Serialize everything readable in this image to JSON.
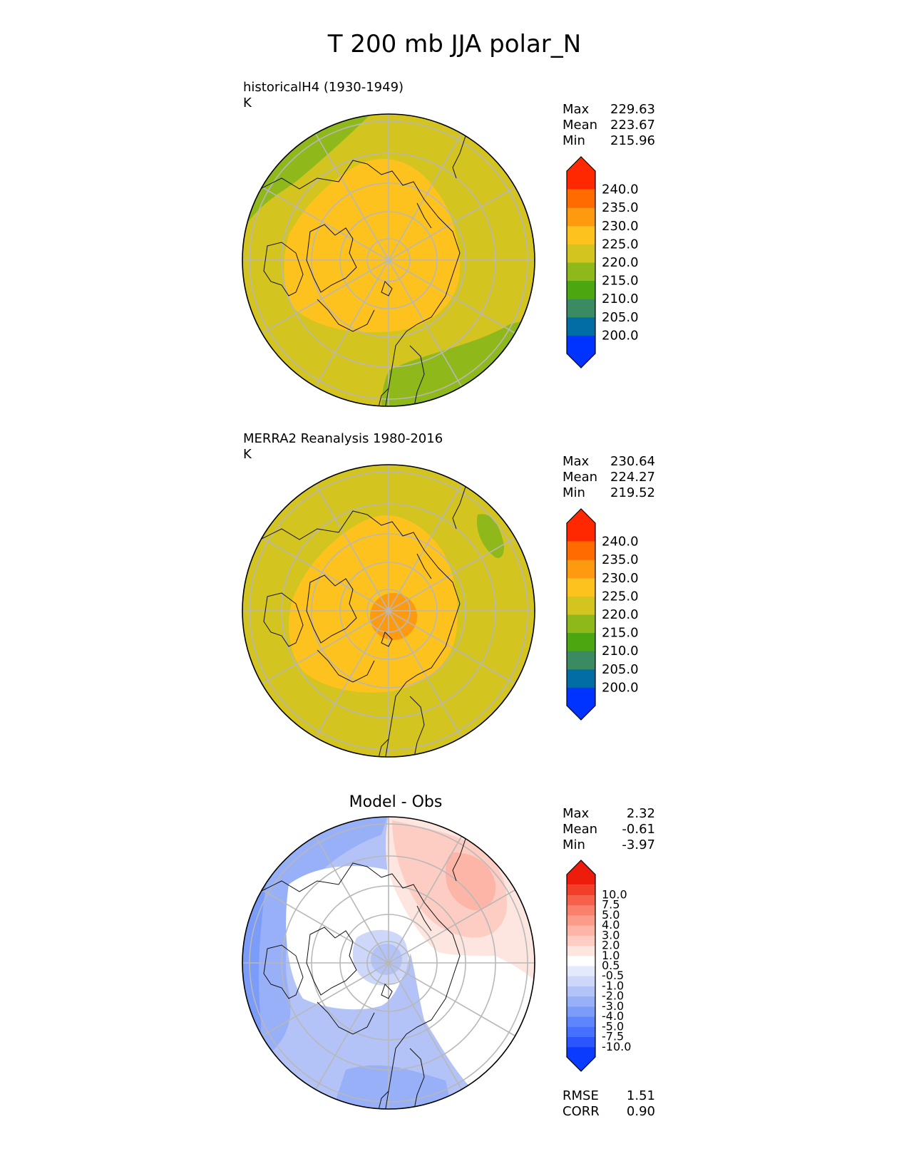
{
  "title": "T 200 mb JJA polar_N",
  "palettes": {
    "abs": [
      "#0033ff",
      "#006ea5",
      "#3a8a62",
      "#4ca60f",
      "#8fb81a",
      "#d3c41f",
      "#fdc21e",
      "#fd9a10",
      "#ff6b00",
      "#ff2800"
    ],
    "diff": [
      "#0a3cff",
      "#2a55ff",
      "#4670ff",
      "#5e85fc",
      "#7b9cf9",
      "#97b0f7",
      "#b3c3f7",
      "#cdd7f9",
      "#e4e9fb",
      "#ffffff",
      "#fde5e0",
      "#fdcdc3",
      "#fcb5a6",
      "#fb9c88",
      "#f9806a",
      "#f5614b",
      "#f13f2a",
      "#ee1c0c"
    ]
  },
  "chart_data": [
    {
      "type": "heatmap",
      "projection": "polar_N",
      "label_line1": "historicalH4 (1930-1949)",
      "label_line2": "K",
      "stats": [
        {
          "name": "Max",
          "value": "229.63"
        },
        {
          "name": "Mean",
          "value": "223.67"
        },
        {
          "name": "Min",
          "value": "215.96"
        }
      ],
      "colorbar_levels": [
        "200.0",
        "205.0",
        "210.0",
        "215.0",
        "220.0",
        "225.0",
        "230.0",
        "235.0",
        "240.0"
      ],
      "field_bands": [
        {
          "from": 215,
          "to": 220
        },
        {
          "from": 220,
          "to": 225
        },
        {
          "from": 225,
          "to": 230
        }
      ]
    },
    {
      "type": "heatmap",
      "projection": "polar_N",
      "label_line1": "MERRA2 Reanalysis 1980-2016",
      "label_line2": "K",
      "stats": [
        {
          "name": "Max",
          "value": "230.64"
        },
        {
          "name": "Mean",
          "value": "224.27"
        },
        {
          "name": "Min",
          "value": "219.52"
        }
      ],
      "colorbar_levels": [
        "200.0",
        "205.0",
        "210.0",
        "215.0",
        "220.0",
        "225.0",
        "230.0",
        "235.0",
        "240.0"
      ],
      "field_bands": [
        {
          "from": 215,
          "to": 220
        },
        {
          "from": 220,
          "to": 225
        },
        {
          "from": 225,
          "to": 230
        },
        {
          "from": 230,
          "to": 235
        }
      ]
    },
    {
      "type": "heatmap",
      "projection": "polar_N",
      "title": "Model - Obs",
      "stats": [
        {
          "name": "Max",
          "value": "2.32"
        },
        {
          "name": "Mean",
          "value": "-0.61"
        },
        {
          "name": "Min",
          "value": "-3.97"
        }
      ],
      "metrics": [
        {
          "name": "RMSE",
          "value": "1.51"
        },
        {
          "name": "CORR",
          "value": "0.90"
        }
      ],
      "colorbar_levels": [
        "-10.0",
        "-7.5",
        "-5.0",
        "-4.0",
        "-3.0",
        "-2.0",
        "-1.0",
        "-0.5",
        "0.5",
        "1.0",
        "2.0",
        "3.0",
        "4.0",
        "5.0",
        "7.5",
        "10.0"
      ],
      "field_bands": [
        {
          "from": -4,
          "to": -3
        },
        {
          "from": -3,
          "to": -2
        },
        {
          "from": -2,
          "to": -1
        },
        {
          "from": -1,
          "to": -0.5
        },
        {
          "from": -0.5,
          "to": 0.5
        },
        {
          "from": 0.5,
          "to": 1
        },
        {
          "from": 1,
          "to": 2
        },
        {
          "from": 2,
          "to": 3
        }
      ]
    }
  ]
}
